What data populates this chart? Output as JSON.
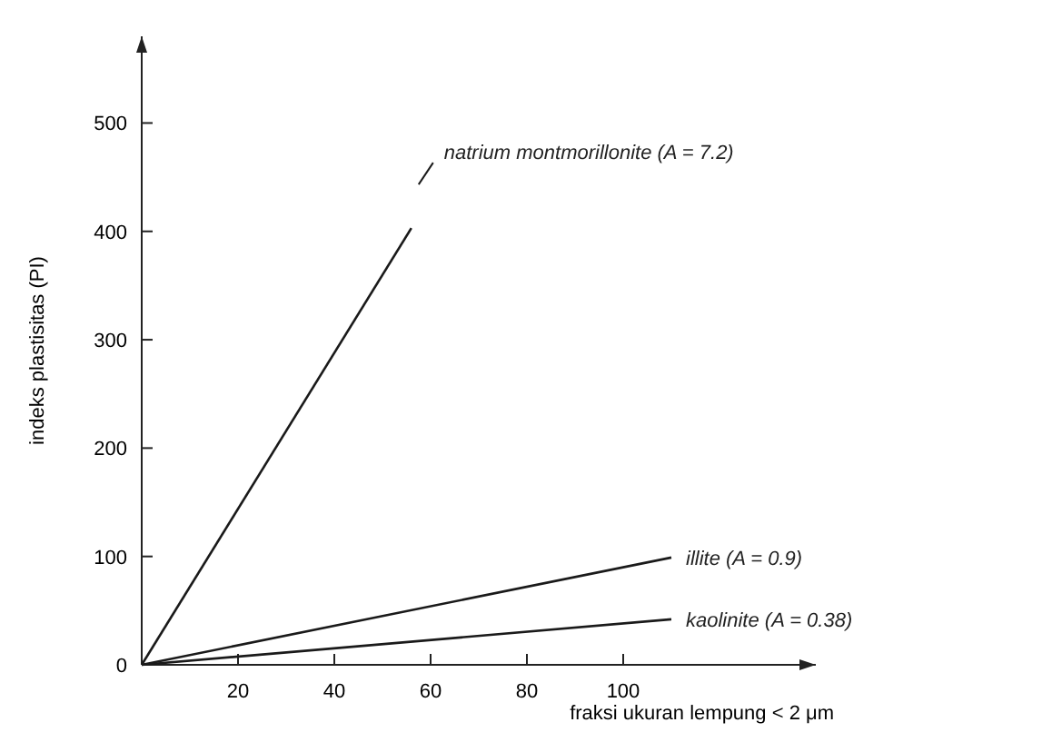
{
  "chart_data": {
    "type": "line",
    "xlabel": "fraksi ukuran lempung < 2 μm",
    "ylabel": "indeks plastisitas (PI)",
    "xlim": [
      0,
      140
    ],
    "ylim": [
      0,
      580
    ],
    "xticks": [
      20,
      40,
      60,
      80,
      100
    ],
    "yticks": [
      0,
      100,
      200,
      300,
      400,
      500
    ],
    "grid": false,
    "marker": "none",
    "line_style": "solid",
    "series": [
      {
        "name": "natrium montmorillonite (A = 7.2)",
        "color": "#1a1a1a",
        "x": [
          0,
          56
        ],
        "values": [
          0,
          403
        ]
      },
      {
        "name": "illite (A = 0.9)",
        "color": "#1a1a1a",
        "x": [
          0,
          110
        ],
        "values": [
          0,
          99
        ]
      },
      {
        "name": "kaolinite (A = 0.38)",
        "color": "#1a1a1a",
        "x": [
          0,
          110
        ],
        "values": [
          0,
          42
        ]
      }
    ]
  }
}
